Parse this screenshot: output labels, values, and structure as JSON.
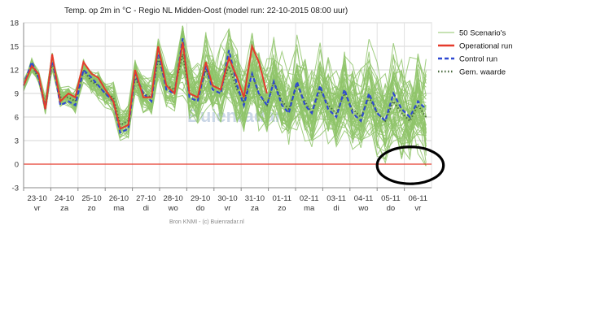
{
  "chart_data": {
    "type": "line",
    "title": "Temp. op 2m in °C - Regio NL Midden-Oost (model run: 22-10-2015 08:00 uur)",
    "credit": "Bron KNMI - (c) Buienradar.nl",
    "watermark": "Buienradar",
    "ylim": [
      -3,
      18
    ],
    "yticks": [
      "18",
      "15",
      "12",
      "9",
      "6",
      "3",
      "0",
      "-3"
    ],
    "xlim": [
      0,
      15
    ],
    "x_categories": [
      {
        "date": "23-10",
        "day": "vr"
      },
      {
        "date": "24-10",
        "day": "za"
      },
      {
        "date": "25-10",
        "day": "zo"
      },
      {
        "date": "26-10",
        "day": "ma"
      },
      {
        "date": "27-10",
        "day": "di"
      },
      {
        "date": "28-10",
        "day": "wo"
      },
      {
        "date": "29-10",
        "day": "do"
      },
      {
        "date": "30-10",
        "day": "vr"
      },
      {
        "date": "31-10",
        "day": "za"
      },
      {
        "date": "01-11",
        "day": "zo"
      },
      {
        "date": "02-11",
        "day": "ma"
      },
      {
        "date": "03-11",
        "day": "di"
      },
      {
        "date": "04-11",
        "day": "wo"
      },
      {
        "date": "05-11",
        "day": "do"
      },
      {
        "date": "06-11",
        "day": "vr"
      }
    ],
    "grid": true,
    "legend_position": "right",
    "series": [
      {
        "name": "50 Scenario's",
        "color": "#8fc46a",
        "style": "solid",
        "count": 50
      },
      {
        "name": "Operational run",
        "color": "#e53b2c",
        "style": "solid"
      },
      {
        "name": "Control run",
        "color": "#2f49d1",
        "style": "dashed"
      },
      {
        "name": "Gem. waarde",
        "color": "#4a6b3f",
        "style": "dotted"
      }
    ],
    "operational": {
      "x": [
        0,
        0.3,
        0.55,
        0.8,
        1.05,
        1.35,
        1.65,
        1.9,
        2.2,
        2.5,
        2.75,
        3.0,
        3.3,
        3.55,
        3.85,
        4.1,
        4.4,
        4.7,
        4.95,
        5.25,
        5.55,
        5.85,
        6.1,
        6.4,
        6.7,
        6.95,
        7.25,
        7.55,
        7.85,
        8.1,
        8.4,
        8.65,
        8.95
      ],
      "y": [
        10,
        12.5,
        11.5,
        7,
        14,
        8,
        9,
        8.5,
        13,
        11.5,
        11,
        9.5,
        8,
        4.5,
        5,
        12,
        8.5,
        8.5,
        15,
        10,
        9,
        15.5,
        9,
        8.5,
        13,
        10,
        9.5,
        13.5,
        11,
        8.5,
        15,
        13,
        9
      ]
    },
    "control": {
      "x": [
        0,
        0.3,
        0.55,
        0.8,
        1.05,
        1.35,
        1.65,
        1.9,
        2.2,
        2.5,
        2.75,
        3.0,
        3.3,
        3.55,
        3.85,
        4.1,
        4.4,
        4.7,
        4.95,
        5.25,
        5.55,
        5.85,
        6.1,
        6.4,
        6.7,
        6.95,
        7.25,
        7.55,
        7.85,
        8.1,
        8.4,
        8.65,
        8.95,
        9.2,
        9.5,
        9.75,
        10.05,
        10.35,
        10.6,
        10.9,
        11.2,
        11.5,
        11.8,
        12.1,
        12.4,
        12.7,
        13.0,
        13.3,
        13.6,
        13.9,
        14.2,
        14.5,
        14.8
      ],
      "y": [
        10,
        13,
        11,
        7,
        13.5,
        7.5,
        8,
        7.5,
        12,
        11,
        10,
        9,
        8,
        4,
        4.5,
        11.5,
        9,
        8,
        14.5,
        9.5,
        9,
        16,
        8.5,
        8,
        12.5,
        9.5,
        9,
        14.5,
        10,
        7.5,
        11.5,
        9,
        7.5,
        10.5,
        7.5,
        6.5,
        10.5,
        7.5,
        6.5,
        10,
        7,
        6,
        9.5,
        6.5,
        5.5,
        9,
        6.5,
        5.5,
        9,
        7,
        6,
        8,
        7
      ]
    },
    "mean": {
      "x": [
        0,
        0.3,
        0.55,
        0.8,
        1.05,
        1.35,
        1.65,
        1.9,
        2.2,
        2.5,
        2.75,
        3.0,
        3.3,
        3.55,
        3.85,
        4.1,
        4.4,
        4.7,
        4.95,
        5.25,
        5.55,
        5.85,
        6.1,
        6.4,
        6.7,
        6.95,
        7.25,
        7.55,
        7.85,
        8.1,
        8.4,
        8.65,
        8.95,
        9.2,
        9.5,
        9.75,
        10.05,
        10.35,
        10.6,
        10.9,
        11.2,
        11.5,
        11.8,
        12.1,
        12.4,
        12.7,
        13.0,
        13.3,
        13.6,
        13.9,
        14.2,
        14.5,
        14.8
      ],
      "y": [
        10,
        12.5,
        11,
        7.5,
        13,
        8.5,
        8.5,
        8,
        12,
        10.5,
        10,
        9,
        8.5,
        5,
        5.5,
        11,
        9,
        8.5,
        13.5,
        10,
        9.5,
        14,
        9,
        8.5,
        12,
        10,
        9.5,
        12.5,
        9.5,
        8,
        11.5,
        9,
        7.5,
        10.5,
        8,
        7,
        10,
        8,
        6.5,
        9.5,
        7.5,
        6.5,
        9,
        7,
        6,
        8.5,
        6.5,
        5.5,
        8,
        6.5,
        5.5,
        7.5,
        6
      ]
    },
    "scenario_seed": 7,
    "zero_line_color": "#e53b2c",
    "annotation": {
      "shape": "ellipse",
      "around_x": [
        13.0,
        14.9
      ],
      "around_y": [
        -2.5,
        2.2
      ],
      "color": "#000000"
    }
  }
}
